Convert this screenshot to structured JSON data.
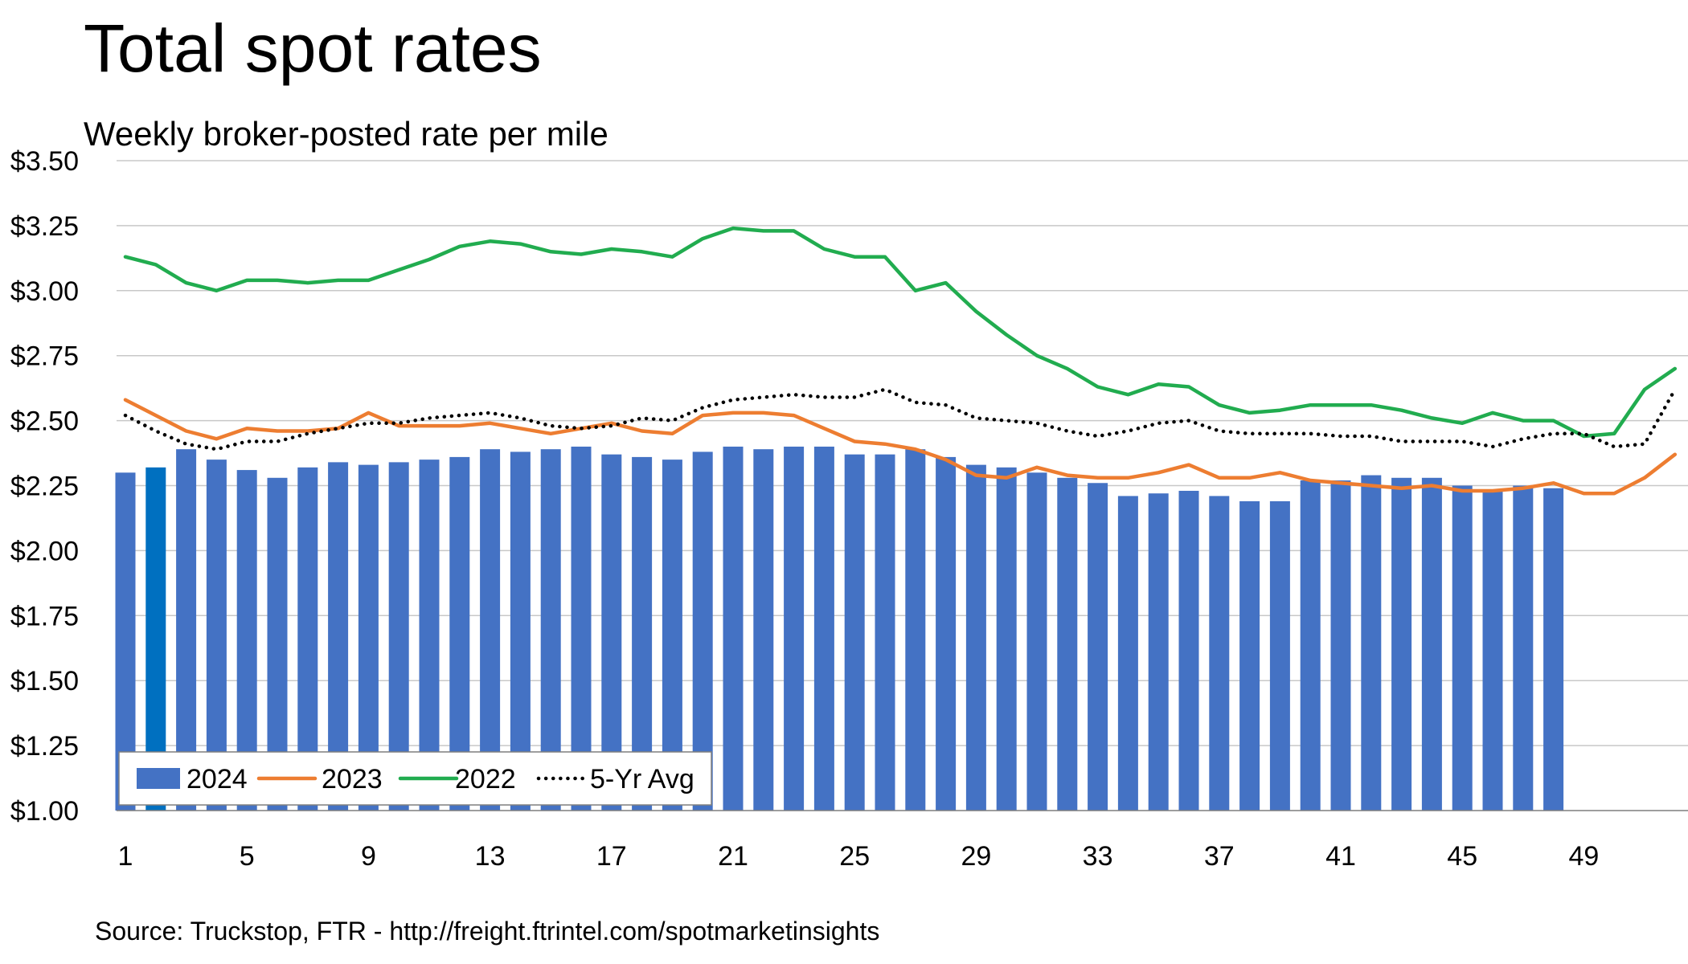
{
  "chart_data": {
    "type": "bar",
    "title": "Total spot rates",
    "subtitle": "Weekly broker-posted rate per mile",
    "source": "Source: Truckstop, FTR - http://freight.ftrintel.com/spotmarketinsights",
    "xlabel": "",
    "ylabel": "",
    "ylim": [
      1.0,
      3.5
    ],
    "y_ticks": [
      1.0,
      1.25,
      1.5,
      1.75,
      2.0,
      2.25,
      2.5,
      2.75,
      3.0,
      3.25,
      3.5
    ],
    "y_tick_labels": [
      "$1.00",
      "$1.25",
      "$1.50",
      "$1.75",
      "$2.00",
      "$2.25",
      "$2.50",
      "$2.75",
      "$3.00",
      "$3.25",
      "$3.50"
    ],
    "x_range": [
      1,
      52
    ],
    "x_ticks": [
      1,
      5,
      9,
      13,
      17,
      21,
      25,
      29,
      33,
      37,
      41,
      45,
      49
    ],
    "x_tick_labels": [
      "1",
      "5",
      "9",
      "13",
      "17",
      "21",
      "25",
      "29",
      "33",
      "37",
      "41",
      "45",
      "49"
    ],
    "grid": true,
    "legend_position": "bottom-left",
    "highlight_week": 2,
    "colors": {
      "bar": "#4472C4",
      "bar_highlight": "#0070C0",
      "2023": "#ED7D31",
      "2022": "#21AC4F",
      "avg": "#000000",
      "grid": "#C8C8C8",
      "axis": "#7F7F7F"
    },
    "series": [
      {
        "name": "2024",
        "type": "bar",
        "x": [
          1,
          2,
          3,
          4,
          5,
          6,
          7,
          8,
          9,
          10,
          11,
          12,
          13,
          14,
          15,
          16,
          17,
          18,
          19,
          20,
          21,
          22,
          23,
          24,
          25,
          26,
          27,
          28,
          29,
          30,
          31,
          32,
          33,
          34,
          35,
          36,
          37,
          38,
          39,
          40,
          41,
          42,
          43,
          44,
          45,
          46,
          47,
          48
        ],
        "values": [
          2.3,
          2.32,
          2.39,
          2.35,
          2.31,
          2.28,
          2.32,
          2.34,
          2.33,
          2.34,
          2.35,
          2.36,
          2.39,
          2.38,
          2.39,
          2.4,
          2.37,
          2.36,
          2.35,
          2.38,
          2.4,
          2.39,
          2.4,
          2.4,
          2.37,
          2.37,
          2.39,
          2.36,
          2.33,
          2.32,
          2.3,
          2.28,
          2.26,
          2.21,
          2.22,
          2.23,
          2.21,
          2.19,
          2.19,
          2.27,
          2.27,
          2.29,
          2.28,
          2.28,
          2.25,
          2.23,
          2.25,
          2.24
        ]
      },
      {
        "name": "2023",
        "type": "line",
        "x": [
          1,
          2,
          3,
          4,
          5,
          6,
          7,
          8,
          9,
          10,
          11,
          12,
          13,
          14,
          15,
          16,
          17,
          18,
          19,
          20,
          21,
          22,
          23,
          24,
          25,
          26,
          27,
          28,
          29,
          30,
          31,
          32,
          33,
          34,
          35,
          36,
          37,
          38,
          39,
          40,
          41,
          42,
          43,
          44,
          45,
          46,
          47,
          48,
          49,
          50,
          51,
          52
        ],
        "values": [
          2.58,
          2.52,
          2.46,
          2.43,
          2.47,
          2.46,
          2.46,
          2.47,
          2.53,
          2.48,
          2.48,
          2.48,
          2.49,
          2.47,
          2.45,
          2.47,
          2.49,
          2.46,
          2.45,
          2.52,
          2.53,
          2.53,
          2.52,
          2.47,
          2.42,
          2.41,
          2.39,
          2.35,
          2.29,
          2.28,
          2.32,
          2.29,
          2.28,
          2.28,
          2.3,
          2.33,
          2.28,
          2.28,
          2.3,
          2.27,
          2.26,
          2.25,
          2.24,
          2.25,
          2.23,
          2.23,
          2.24,
          2.26,
          2.22,
          2.22,
          2.28,
          2.37
        ]
      },
      {
        "name": "2022",
        "type": "line",
        "x": [
          1,
          2,
          3,
          4,
          5,
          6,
          7,
          8,
          9,
          10,
          11,
          12,
          13,
          14,
          15,
          16,
          17,
          18,
          19,
          20,
          21,
          22,
          23,
          24,
          25,
          26,
          27,
          28,
          29,
          30,
          31,
          32,
          33,
          34,
          35,
          36,
          37,
          38,
          39,
          40,
          41,
          42,
          43,
          44,
          45,
          46,
          47,
          48,
          49,
          50,
          51,
          52
        ],
        "values": [
          3.13,
          3.1,
          3.03,
          3.0,
          3.04,
          3.04,
          3.03,
          3.04,
          3.04,
          3.08,
          3.12,
          3.17,
          3.19,
          3.18,
          3.15,
          3.14,
          3.16,
          3.15,
          3.13,
          3.2,
          3.24,
          3.23,
          3.23,
          3.16,
          3.13,
          3.13,
          3.0,
          3.03,
          2.92,
          2.83,
          2.75,
          2.7,
          2.63,
          2.6,
          2.64,
          2.63,
          2.56,
          2.53,
          2.54,
          2.56,
          2.56,
          2.56,
          2.54,
          2.51,
          2.49,
          2.53,
          2.5,
          2.5,
          2.44,
          2.45,
          2.62,
          2.7
        ]
      },
      {
        "name": "5-Yr Avg",
        "type": "line",
        "x": [
          1,
          2,
          3,
          4,
          5,
          6,
          7,
          8,
          9,
          10,
          11,
          12,
          13,
          14,
          15,
          16,
          17,
          18,
          19,
          20,
          21,
          22,
          23,
          24,
          25,
          26,
          27,
          28,
          29,
          30,
          31,
          32,
          33,
          34,
          35,
          36,
          37,
          38,
          39,
          40,
          41,
          42,
          43,
          44,
          45,
          46,
          47,
          48,
          49,
          50,
          51,
          52
        ],
        "values": [
          2.52,
          2.46,
          2.41,
          2.39,
          2.42,
          2.42,
          2.45,
          2.47,
          2.49,
          2.49,
          2.51,
          2.52,
          2.53,
          2.51,
          2.48,
          2.47,
          2.48,
          2.51,
          2.5,
          2.55,
          2.58,
          2.59,
          2.6,
          2.59,
          2.59,
          2.62,
          2.57,
          2.56,
          2.51,
          2.5,
          2.49,
          2.46,
          2.44,
          2.46,
          2.49,
          2.5,
          2.46,
          2.45,
          2.45,
          2.45,
          2.44,
          2.44,
          2.42,
          2.42,
          2.42,
          2.4,
          2.43,
          2.45,
          2.45,
          2.4,
          2.41,
          2.62
        ]
      }
    ]
  }
}
